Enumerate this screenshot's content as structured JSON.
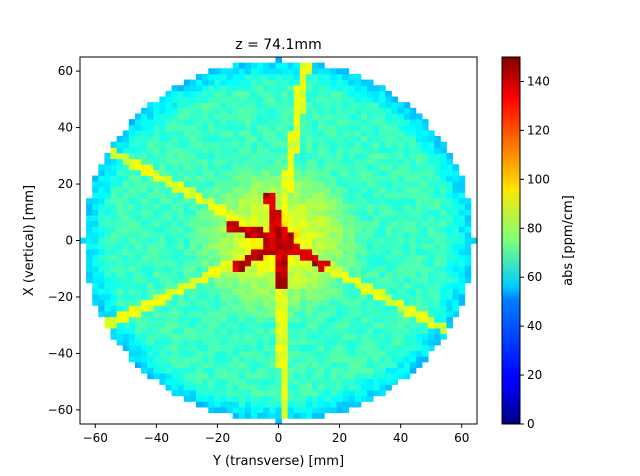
{
  "chart_data": {
    "type": "heatmap",
    "title": "z = 74.1mm",
    "xlabel": "Y (transverse) [mm]",
    "ylabel": "X (vertical) [mm]",
    "xlim": [
      -65,
      65
    ],
    "ylim": [
      -65,
      65
    ],
    "x_ticks": [
      -60,
      -40,
      -20,
      0,
      20,
      40,
      60
    ],
    "y_ticks": [
      -60,
      -40,
      -20,
      0,
      20,
      40,
      60
    ],
    "colorbar": {
      "label": "abs [ppm/cm]",
      "range": [
        0,
        150
      ],
      "ticks": [
        0,
        20,
        40,
        60,
        80,
        100,
        120,
        140
      ],
      "colormap": "jet"
    },
    "disk_radius_mm": 64,
    "structure": {
      "background_level": 65,
      "edge_level": 50,
      "central_star_level": 140,
      "inner_ring_level": 105,
      "boundary_line_level": 90,
      "star_arms_deg": [
        100,
        160,
        215,
        275,
        330
      ],
      "outer_boundaries_deg": [
        82,
        150,
        208,
        272,
        330
      ]
    },
    "colors": {
      "frame": "#000000",
      "background": "#ffffff",
      "jet_low": "#00007f",
      "jet_high": "#7f0000"
    }
  }
}
